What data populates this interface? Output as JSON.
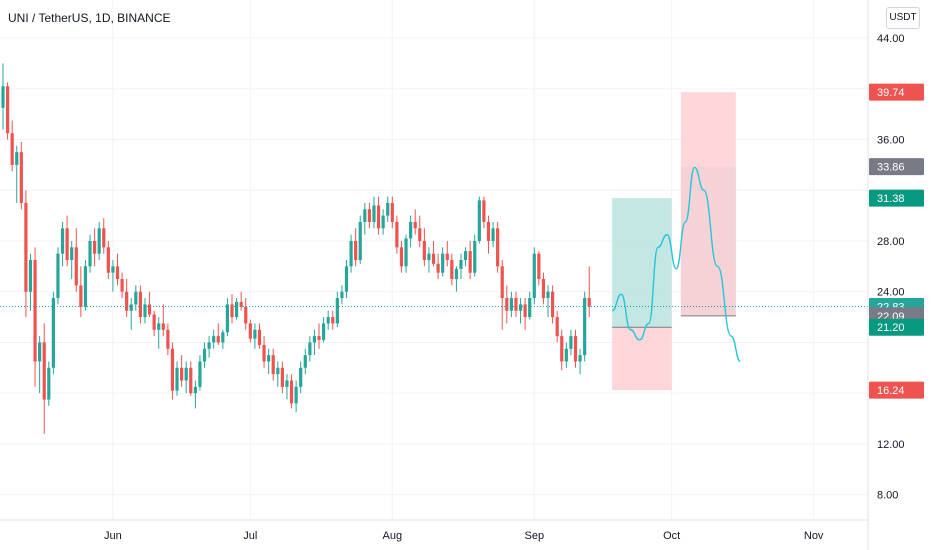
{
  "header": {
    "title": "UNI / TetherUS, 1D, BINANCE",
    "currency_button": "USDT"
  },
  "colors": {
    "up": "#26a69a",
    "down": "#ef5350",
    "profit_zone": "#b2dfdb",
    "loss_zone": "#ffcdd2",
    "projection_line": "#26c6da",
    "current_price_line": "#26a69a",
    "grid": "#f0f3fa"
  },
  "price_labels": [
    {
      "text": "39.74",
      "value": 39.74,
      "color": "#ef5350"
    },
    {
      "text": "33.86",
      "value": 33.86,
      "color": "#787b86"
    },
    {
      "text": "31.38",
      "value": 31.38,
      "color": "#089981"
    },
    {
      "text": "22.83",
      "value": 22.83,
      "color": "#26a69a",
      "subtext": "16:10:16"
    },
    {
      "text": "22.09",
      "value": 22.09,
      "color": "#787b86"
    },
    {
      "text": "21.20",
      "value": 21.2,
      "color": "#089981"
    },
    {
      "text": "16.24",
      "value": 16.24,
      "color": "#ef5350"
    }
  ],
  "chart_data": {
    "type": "candlestick",
    "title": "UNI / TetherUS, 1D, BINANCE",
    "y_axis_ticks": [
      8.0,
      12.0,
      16.0,
      20.0,
      24.0,
      28.0,
      32.0,
      36.0,
      40.0,
      44.0
    ],
    "y_axis_tick_labels": [
      "8.00",
      "12.00",
      "",
      "",
      "24.00",
      "28.00",
      "",
      "36.00",
      "",
      "44.00"
    ],
    "x_axis_labels": [
      "Jun",
      "Jul",
      "Aug",
      "Sep",
      "Oct",
      "Nov"
    ],
    "x_axis_label_day_index": [
      24,
      54,
      85,
      116,
      146,
      177
    ],
    "ylim": [
      6.0,
      47.0
    ],
    "first_day": "2021-05-08",
    "current_price": 22.83,
    "countdown": "16:10:16",
    "ohlc": [
      [
        38.5,
        42.0,
        36.8,
        40.2
      ],
      [
        40.2,
        40.5,
        36.0,
        36.5
      ],
      [
        36.5,
        37.5,
        33.5,
        34.0
      ],
      [
        34.0,
        35.5,
        31.0,
        35.0
      ],
      [
        35.0,
        35.8,
        30.5,
        31.0
      ],
      [
        31.0,
        32.0,
        22.0,
        24.0
      ],
      [
        24.0,
        27.0,
        22.5,
        26.5
      ],
      [
        26.5,
        27.5,
        16.5,
        18.5
      ],
      [
        18.5,
        20.5,
        16.0,
        20.0
      ],
      [
        20.0,
        21.5,
        12.8,
        15.5
      ],
      [
        15.5,
        18.5,
        15.0,
        18.0
      ],
      [
        18.0,
        24.0,
        17.5,
        23.5
      ],
      [
        23.5,
        27.5,
        23.0,
        27.0
      ],
      [
        27.0,
        29.5,
        26.0,
        29.0
      ],
      [
        29.0,
        30.0,
        26.0,
        26.5
      ],
      [
        26.5,
        28.0,
        25.0,
        27.5
      ],
      [
        27.5,
        29.0,
        24.0,
        24.5
      ],
      [
        24.5,
        26.0,
        22.0,
        22.8
      ],
      [
        22.8,
        26.5,
        22.5,
        26.0
      ],
      [
        26.0,
        28.5,
        25.5,
        28.0
      ],
      [
        28.0,
        29.0,
        26.0,
        27.0
      ],
      [
        27.0,
        29.5,
        26.5,
        29.0
      ],
      [
        29.0,
        29.8,
        27.0,
        27.5
      ],
      [
        27.5,
        28.0,
        25.0,
        25.5
      ],
      [
        25.5,
        26.5,
        24.0,
        26.0
      ],
      [
        26.0,
        27.0,
        24.5,
        25.0
      ],
      [
        25.0,
        25.5,
        23.5,
        24.0
      ],
      [
        24.0,
        25.0,
        22.0,
        22.5
      ],
      [
        22.5,
        23.5,
        21.0,
        23.0
      ],
      [
        23.0,
        24.5,
        22.5,
        24.0
      ],
      [
        24.0,
        24.5,
        21.5,
        22.0
      ],
      [
        22.0,
        23.5,
        21.5,
        23.0
      ],
      [
        23.0,
        24.0,
        22.0,
        22.2
      ],
      [
        22.2,
        22.5,
        20.5,
        21.0
      ],
      [
        21.0,
        22.0,
        19.5,
        21.5
      ],
      [
        21.5,
        23.0,
        20.5,
        21.0
      ],
      [
        21.0,
        21.5,
        19.0,
        19.5
      ],
      [
        19.5,
        20.0,
        15.5,
        16.2
      ],
      [
        16.2,
        18.5,
        15.8,
        18.0
      ],
      [
        18.0,
        19.0,
        16.5,
        17.0
      ],
      [
        17.0,
        18.5,
        16.0,
        18.0
      ],
      [
        18.0,
        18.5,
        15.8,
        16.0
      ],
      [
        16.0,
        17.0,
        14.8,
        16.5
      ],
      [
        16.5,
        19.0,
        16.2,
        18.5
      ],
      [
        18.5,
        20.0,
        18.0,
        19.5
      ],
      [
        19.5,
        20.5,
        18.8,
        20.0
      ],
      [
        20.0,
        21.0,
        19.5,
        20.5
      ],
      [
        20.5,
        21.5,
        19.8,
        20.0
      ],
      [
        20.0,
        21.0,
        19.5,
        20.8
      ],
      [
        20.8,
        23.5,
        20.5,
        23.0
      ],
      [
        23.0,
        23.8,
        21.5,
        22.0
      ],
      [
        22.0,
        23.5,
        21.8,
        23.2
      ],
      [
        23.2,
        24.0,
        22.5,
        22.8
      ],
      [
        22.8,
        23.5,
        21.0,
        21.5
      ],
      [
        21.5,
        21.8,
        20.0,
        20.3
      ],
      [
        20.3,
        21.5,
        19.5,
        21.0
      ],
      [
        21.0,
        21.5,
        19.5,
        19.8
      ],
      [
        19.8,
        20.5,
        18.0,
        18.5
      ],
      [
        18.5,
        19.5,
        17.5,
        19.0
      ],
      [
        19.0,
        19.5,
        17.0,
        17.5
      ],
      [
        17.5,
        18.5,
        16.5,
        18.0
      ],
      [
        18.0,
        18.5,
        16.0,
        16.5
      ],
      [
        16.5,
        17.5,
        15.5,
        17.0
      ],
      [
        17.0,
        17.5,
        14.8,
        15.2
      ],
      [
        15.2,
        17.0,
        14.5,
        16.5
      ],
      [
        16.5,
        18.5,
        16.0,
        18.0
      ],
      [
        18.0,
        19.5,
        17.5,
        19.0
      ],
      [
        19.0,
        20.5,
        18.5,
        20.0
      ],
      [
        20.0,
        21.0,
        19.0,
        20.5
      ],
      [
        20.5,
        21.5,
        19.5,
        20.2
      ],
      [
        20.2,
        22.0,
        20.0,
        21.5
      ],
      [
        21.5,
        22.5,
        21.0,
        22.0
      ],
      [
        22.0,
        22.5,
        21.0,
        21.5
      ],
      [
        21.5,
        24.0,
        21.2,
        23.5
      ],
      [
        23.5,
        24.5,
        23.0,
        24.0
      ],
      [
        24.0,
        26.5,
        23.5,
        26.0
      ],
      [
        26.0,
        28.5,
        25.5,
        28.0
      ],
      [
        28.0,
        29.0,
        26.0,
        26.5
      ],
      [
        26.5,
        30.0,
        26.2,
        29.5
      ],
      [
        29.5,
        31.0,
        28.5,
        30.5
      ],
      [
        30.5,
        31.0,
        29.0,
        29.5
      ],
      [
        29.5,
        31.5,
        29.0,
        30.8
      ],
      [
        30.8,
        31.5,
        28.5,
        29.0
      ],
      [
        29.0,
        30.5,
        28.5,
        30.0
      ],
      [
        30.0,
        31.5,
        29.5,
        31.0
      ],
      [
        31.0,
        31.5,
        29.0,
        29.5
      ],
      [
        29.5,
        30.0,
        27.0,
        27.5
      ],
      [
        27.5,
        28.0,
        25.5,
        26.0
      ],
      [
        26.0,
        28.5,
        25.5,
        28.2
      ],
      [
        28.2,
        30.0,
        27.5,
        29.5
      ],
      [
        29.5,
        30.5,
        28.5,
        29.0
      ],
      [
        29.0,
        30.0,
        27.5,
        28.0
      ],
      [
        28.0,
        29.0,
        26.0,
        26.5
      ],
      [
        26.5,
        27.5,
        25.5,
        27.0
      ],
      [
        27.0,
        28.0,
        26.0,
        26.2
      ],
      [
        26.2,
        27.0,
        25.0,
        25.5
      ],
      [
        25.5,
        27.5,
        25.2,
        27.0
      ],
      [
        27.0,
        28.0,
        26.0,
        26.5
      ],
      [
        26.5,
        27.0,
        24.5,
        25.0
      ],
      [
        25.0,
        26.0,
        24.0,
        25.8
      ],
      [
        25.8,
        27.0,
        25.0,
        26.5
      ],
      [
        26.5,
        27.5,
        26.0,
        27.2
      ],
      [
        27.2,
        28.0,
        25.0,
        25.5
      ],
      [
        25.5,
        28.5,
        25.2,
        28.0
      ],
      [
        28.0,
        31.5,
        27.8,
        31.2
      ],
      [
        31.2,
        31.5,
        29.0,
        29.5
      ],
      [
        29.5,
        30.0,
        27.0,
        28.0
      ],
      [
        28.0,
        29.5,
        27.5,
        29.0
      ],
      [
        29.0,
        29.5,
        25.5,
        26.0
      ],
      [
        26.0,
        26.5,
        21.0,
        23.5
      ],
      [
        23.5,
        24.5,
        21.5,
        22.5
      ],
      [
        22.5,
        24.0,
        22.0,
        23.5
      ],
      [
        23.5,
        24.0,
        22.0,
        22.5
      ],
      [
        22.5,
        23.5,
        21.5,
        23.0
      ],
      [
        23.0,
        23.5,
        21.0,
        22.0
      ],
      [
        22.0,
        24.0,
        21.8,
        23.5
      ],
      [
        23.5,
        27.5,
        23.0,
        27.0
      ],
      [
        27.0,
        27.2,
        24.5,
        25.0
      ],
      [
        25.0,
        25.5,
        23.0,
        23.5
      ],
      [
        23.5,
        24.5,
        22.0,
        24.0
      ],
      [
        24.0,
        24.5,
        21.5,
        22.0
      ],
      [
        22.0,
        22.5,
        20.0,
        20.5
      ],
      [
        20.5,
        21.0,
        17.8,
        18.5
      ],
      [
        18.5,
        20.0,
        18.0,
        19.5
      ],
      [
        19.5,
        21.0,
        19.0,
        20.5
      ],
      [
        20.5,
        21.0,
        18.0,
        18.5
      ],
      [
        18.5,
        19.5,
        17.5,
        19.0
      ],
      [
        19.0,
        24.0,
        18.5,
        23.5
      ],
      [
        23.5,
        26.0,
        22.0,
        22.83
      ]
    ],
    "trade_setups": [
      {
        "start_day": 133,
        "end_day": 146,
        "entry": 21.2,
        "stop": 16.24,
        "target": 31.38
      },
      {
        "start_day": 148,
        "end_day": 160,
        "entry": 22.09,
        "stop": 39.74,
        "target": 33.86
      }
    ],
    "projection_path": [
      [
        133,
        22.5
      ],
      [
        135,
        23.8
      ],
      [
        137,
        21.0
      ],
      [
        139,
        20.2
      ],
      [
        141,
        21.5
      ],
      [
        143,
        27.5
      ],
      [
        145,
        28.5
      ],
      [
        147,
        25.8
      ],
      [
        149,
        29.5
      ],
      [
        151,
        33.8
      ],
      [
        153,
        32.0
      ],
      [
        156,
        26.0
      ],
      [
        159,
        20.5
      ],
      [
        161,
        18.5
      ]
    ]
  }
}
